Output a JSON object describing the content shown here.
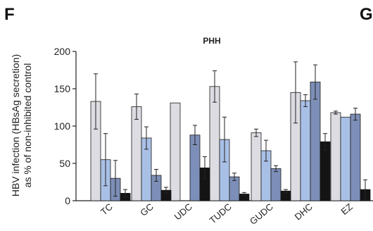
{
  "panel_letters": {
    "left": "F",
    "right": "G"
  },
  "colors": {
    "axis": "#222222",
    "bar_stroke": "#1a1a1a",
    "series_fills": [
      "#dcdce2",
      "#a9c0e6",
      "#7d8fb8",
      "#141414"
    ]
  },
  "chart_data": {
    "type": "bar",
    "title": "PHH",
    "ylabel_line1": "HBV infection (HBsAg secretion)",
    "ylabel_line2": "as % of non-inhibited control",
    "xlabel": "",
    "ylim": [
      0,
      200
    ],
    "yticks": [
      0,
      50,
      100,
      150,
      200
    ],
    "grid": false,
    "legend": "none",
    "categories": [
      "TC",
      "GC",
      "UDC",
      "TUDC",
      "GUDC",
      "DHC",
      "EZ"
    ],
    "series": [
      {
        "values": [
          133,
          126,
          131,
          153,
          91,
          145,
          118
        ],
        "errors": [
          37,
          17,
          0,
          21,
          5,
          41,
          2
        ]
      },
      {
        "values": [
          55,
          84,
          null,
          82,
          67,
          134,
          112
        ],
        "errors": [
          35,
          15,
          0,
          30,
          14,
          8,
          0
        ]
      },
      {
        "values": [
          30,
          34,
          88,
          32,
          43,
          159,
          116
        ],
        "errors": [
          24,
          8,
          13,
          5,
          4,
          23,
          8
        ]
      },
      {
        "values": [
          10,
          14,
          44,
          9,
          13,
          79,
          15
        ],
        "errors": [
          5,
          4,
          15,
          2,
          2,
          11,
          13
        ]
      }
    ]
  }
}
